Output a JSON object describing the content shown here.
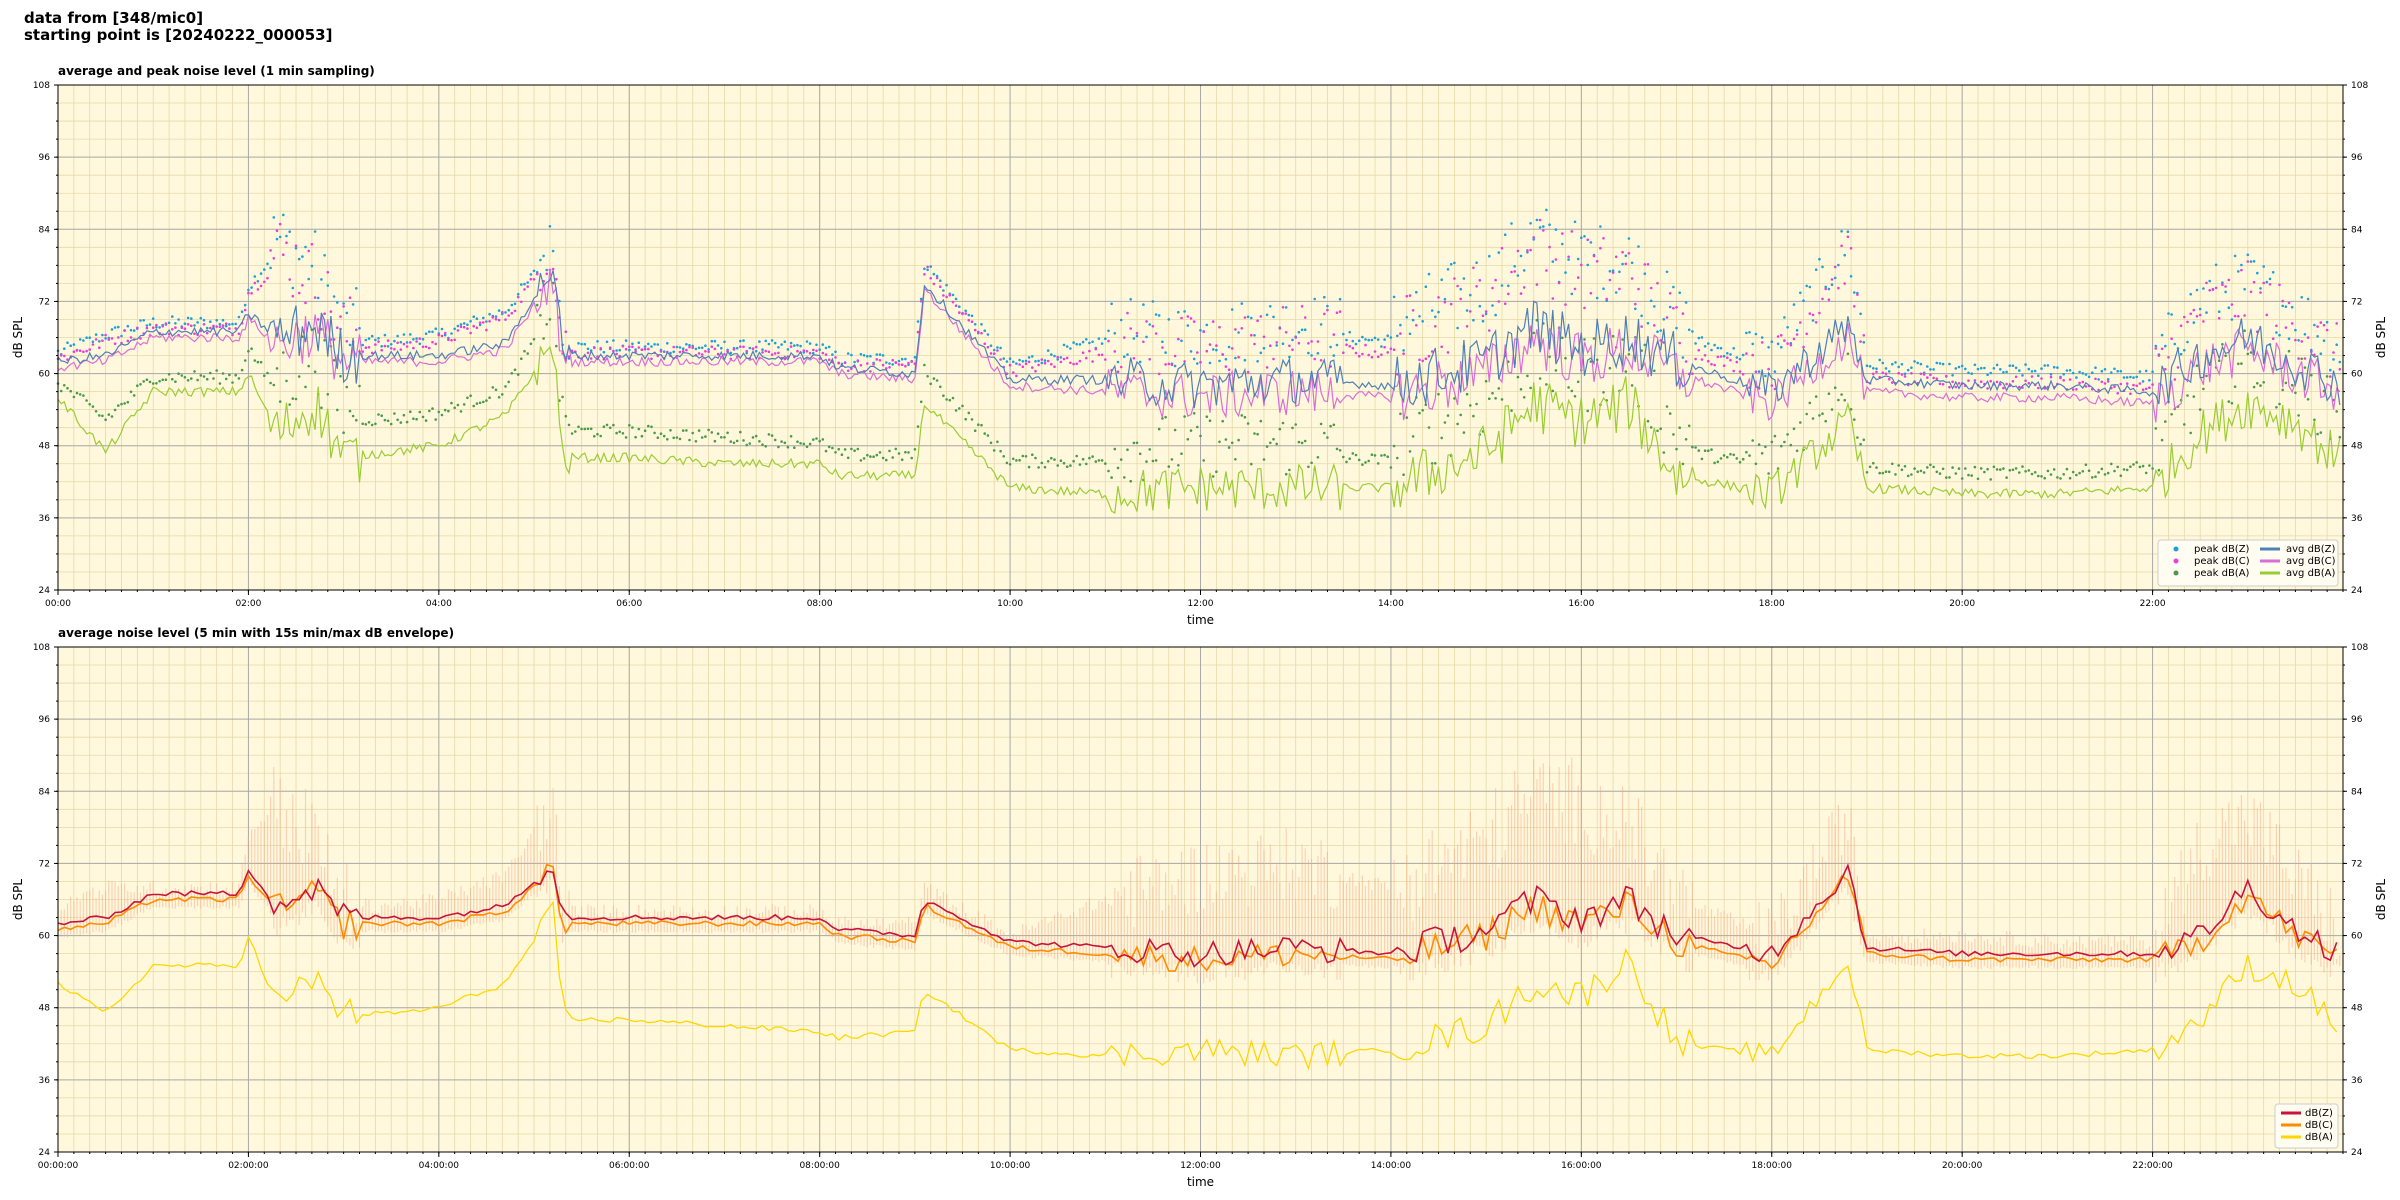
{
  "header": {
    "line1": "data from [348/mic0]",
    "line2": "starting point is [20240222_000053]"
  },
  "colors": {
    "background": "#fff8dc",
    "grid_major": "#a9a9a9",
    "grid_minor": "#e6d9a8",
    "peak_z": "#1f9fd8",
    "peak_c": "#e83fd8",
    "peak_a": "#4a9a4a",
    "avg_z": "#4f7fb5",
    "avg_c": "#d96ed6",
    "avg_a": "#9acd32",
    "env": "#f4a582",
    "z": "#c8143c",
    "c": "#ff8c00",
    "a": "#ffd700"
  },
  "chart_data": [
    {
      "type": "line",
      "title": "average and peak noise level (1 min sampling)",
      "xlabel": "time",
      "ylabel": "dB SPL",
      "xlim": [
        0,
        24
      ],
      "ylim": [
        24,
        108
      ],
      "yticks": [
        "24",
        "36",
        "48",
        "60",
        "72",
        "84",
        "96",
        "108"
      ],
      "xticks": [
        "00:00",
        "02:00",
        "04:00",
        "06:00",
        "08:00",
        "10:00",
        "12:00",
        "14:00",
        "16:00",
        "18:00",
        "20:00",
        "22:00"
      ],
      "grid": true,
      "legend_position": "bottom-right",
      "legend": [
        "peak dB(Z)",
        "peak dB(C)",
        "peak dB(A)",
        "avg dB(Z)",
        "avg dB(C)",
        "avg dB(A)"
      ],
      "x_hours": [
        0,
        0.5,
        1,
        1.9,
        2,
        2.3,
        2.7,
        3,
        3.5,
        4,
        4.7,
        5.2,
        5.3,
        6,
        7,
        8,
        8.2,
        9,
        9.1,
        10,
        11,
        12,
        13,
        14,
        15,
        15.5,
        16,
        16.5,
        17,
        18,
        18.8,
        19,
        20,
        21,
        22,
        22.5,
        23,
        23.5,
        24
      ],
      "series": [
        {
          "name": "avg dB(Z)",
          "values": [
            62,
            63,
            67,
            67,
            70,
            66,
            68,
            63,
            63,
            63,
            65,
            78,
            63,
            63,
            63,
            63,
            61,
            60,
            75,
            59,
            59,
            58,
            59,
            58,
            62,
            68,
            64,
            66,
            62,
            57,
            68,
            59,
            58,
            58,
            57,
            63,
            66,
            62,
            58
          ]
        },
        {
          "name": "avg dB(C)",
          "values": [
            61,
            62,
            66,
            66,
            69,
            65,
            67,
            62,
            62,
            62,
            64,
            76,
            62,
            62,
            62,
            62,
            60,
            59,
            74,
            58,
            57,
            56,
            57,
            56,
            60,
            66,
            62,
            64,
            60,
            55,
            66,
            57,
            56,
            56,
            55,
            61,
            64,
            60,
            57
          ]
        },
        {
          "name": "avg dB(A)",
          "values": [
            56,
            47,
            57,
            57,
            60,
            50,
            55,
            46,
            47,
            48,
            53,
            65,
            46,
            46,
            45,
            45,
            43,
            43,
            55,
            41,
            40,
            41,
            41,
            41,
            47,
            55,
            52,
            55,
            43,
            40,
            52,
            41,
            40,
            40,
            41,
            50,
            55,
            52,
            45
          ]
        },
        {
          "name": "peak dB(Z)",
          "values": [
            63,
            66,
            68,
            68,
            74,
            80,
            75,
            65,
            65,
            66,
            70,
            80,
            64,
            64,
            64,
            64,
            62,
            62,
            78,
            61,
            65,
            64,
            66,
            65,
            72,
            80,
            76,
            76,
            66,
            61,
            80,
            61,
            60,
            60,
            59,
            70,
            73,
            68,
            62
          ]
        },
        {
          "name": "peak dB(C)",
          "values": [
            62,
            65,
            67,
            67,
            73,
            78,
            73,
            64,
            64,
            65,
            69,
            79,
            63,
            63,
            63,
            63,
            61,
            61,
            77,
            60,
            63,
            62,
            64,
            63,
            70,
            78,
            74,
            74,
            64,
            59,
            78,
            59,
            58,
            58,
            57,
            68,
            71,
            66,
            60
          ]
        },
        {
          "name": "peak dB(A)",
          "values": [
            58,
            52,
            59,
            59,
            64,
            56,
            60,
            52,
            52,
            53,
            57,
            70,
            50,
            50,
            49,
            48,
            46,
            46,
            60,
            45,
            45,
            46,
            46,
            45,
            53,
            60,
            57,
            60,
            47,
            44,
            58,
            44,
            43,
            43,
            44,
            55,
            60,
            56,
            50
          ]
        }
      ]
    },
    {
      "type": "line",
      "title": "average noise level (5 min with 15s min/max dB envelope)",
      "xlabel": "time",
      "ylabel": "dB SPL",
      "xlim": [
        0,
        24
      ],
      "ylim": [
        24,
        108
      ],
      "yticks": [
        "24",
        "36",
        "48",
        "60",
        "72",
        "84",
        "96",
        "108"
      ],
      "xticks": [
        "00:00:00",
        "02:00:00",
        "04:00:00",
        "06:00:00",
        "08:00:00",
        "10:00:00",
        "12:00:00",
        "14:00:00",
        "16:00:00",
        "18:00:00",
        "20:00:00",
        "22:00:00"
      ],
      "grid": true,
      "legend_position": "bottom-right",
      "legend": [
        "dB(Z)",
        "dB(C)",
        "dB(A)"
      ],
      "x_hours": [
        0,
        0.5,
        1,
        1.9,
        2,
        2.3,
        2.7,
        3,
        3.5,
        4,
        4.7,
        5.2,
        5.3,
        6,
        7,
        8,
        8.2,
        9,
        9.1,
        10,
        11,
        12,
        13,
        14,
        15,
        15.5,
        16,
        16.5,
        17,
        18,
        18.8,
        19,
        20,
        21,
        22,
        22.5,
        23,
        23.5,
        24
      ],
      "series": [
        {
          "name": "dB(Z)",
          "values": [
            62,
            63,
            67,
            67,
            71,
            65,
            68,
            63,
            63,
            63,
            65,
            72,
            63,
            63,
            63,
            63,
            61,
            60,
            66,
            59,
            58,
            57,
            58,
            57,
            61,
            66,
            63,
            66,
            60,
            57,
            71,
            58,
            57,
            57,
            57,
            60,
            68,
            61,
            57
          ]
        },
        {
          "name": "dB(C)",
          "values": [
            61,
            62,
            66,
            66,
            70,
            64,
            67,
            62,
            62,
            62,
            64,
            71,
            62,
            62,
            62,
            62,
            60,
            59,
            65,
            58,
            57,
            56,
            57,
            56,
            60,
            65,
            62,
            65,
            59,
            55,
            70,
            57,
            56,
            56,
            56,
            59,
            67,
            60,
            56
          ]
        },
        {
          "name": "dB(A)",
          "values": [
            52,
            47,
            55,
            55,
            60,
            48,
            53,
            47,
            47,
            48,
            52,
            64,
            46,
            46,
            45,
            44,
            43,
            44,
            51,
            41,
            40,
            41,
            40,
            41,
            45,
            52,
            50,
            56,
            42,
            40,
            56,
            41,
            40,
            40,
            41,
            46,
            55,
            52,
            44
          ]
        },
        {
          "name": "env_max",
          "values": [
            65,
            68,
            68,
            68,
            77,
            82,
            76,
            65,
            65,
            66,
            70,
            82,
            64,
            64,
            64,
            64,
            62,
            62,
            68,
            60,
            66,
            70,
            72,
            68,
            76,
            84,
            82,
            78,
            66,
            60,
            80,
            60,
            60,
            59,
            59,
            75,
            80,
            70,
            60
          ]
        }
      ]
    }
  ]
}
